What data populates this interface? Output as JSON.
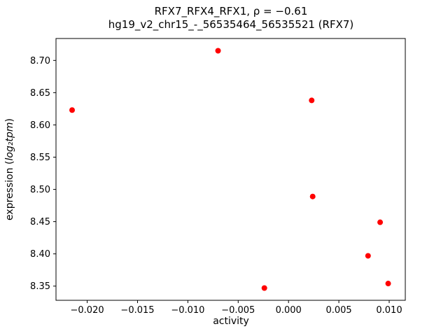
{
  "chart_data": {
    "type": "scatter",
    "title_line1": "RFX7_RFX4_RFX1, ρ = −0.61",
    "title_line2": "hg19_v2_chr15_-_56535464_56535521 (RFX7)",
    "xlabel": "activity",
    "ylabel_prefix": "expression (",
    "ylabel_math": "log₂tpm",
    "ylabel_suffix": ")",
    "marker_color": "#ff0000",
    "axis_color": "#000000",
    "xlim": [
      -0.0231,
      0.0116
    ],
    "ylim": [
      8.328,
      8.734
    ],
    "xticks": [
      -0.02,
      -0.015,
      -0.01,
      -0.005,
      0.0,
      0.005,
      0.01
    ],
    "yticks": [
      8.35,
      8.4,
      8.45,
      8.5,
      8.55,
      8.6,
      8.65,
      8.7
    ],
    "points": [
      {
        "x": -0.0215,
        "y": 8.623
      },
      {
        "x": -0.007,
        "y": 8.715
      },
      {
        "x": 0.0023,
        "y": 8.638
      },
      {
        "x": 0.0024,
        "y": 8.489
      },
      {
        "x": -0.0024,
        "y": 8.347
      },
      {
        "x": 0.0079,
        "y": 8.397
      },
      {
        "x": 0.0091,
        "y": 8.449
      },
      {
        "x": 0.0099,
        "y": 8.354
      }
    ]
  }
}
